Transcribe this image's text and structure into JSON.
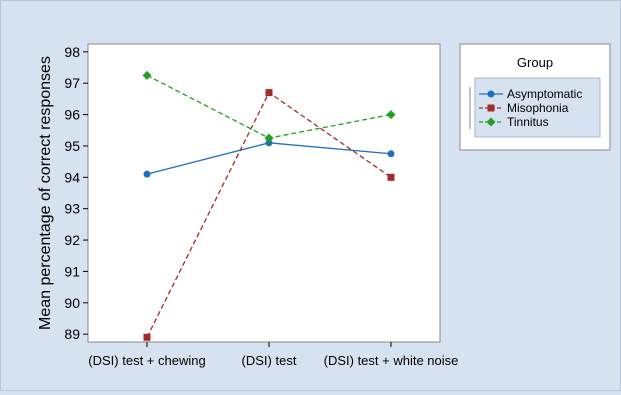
{
  "chart_data": {
    "type": "line",
    "categories": [
      "(DSI) test + chewing",
      "(DSI) test",
      "(DSI) test + white noise"
    ],
    "ylabel": "Mean percentage of correct responses",
    "xlabel": "",
    "ylim": [
      88.75,
      98.25
    ],
    "yticks": [
      89,
      90,
      91,
      92,
      93,
      94,
      95,
      96,
      97,
      98
    ],
    "grid": false,
    "legend": {
      "title": "Group",
      "placement": "right"
    },
    "series": [
      {
        "name": "Asymptomatic",
        "values": [
          94.1,
          95.1,
          94.75
        ],
        "color": "#1f6fc0",
        "marker": "circle",
        "dash": "solid"
      },
      {
        "name": "Misophonia",
        "values": [
          88.9,
          96.7,
          94.0
        ],
        "color": "#a52a2a",
        "marker": "square",
        "dash": "dashed"
      },
      {
        "name": "Tinnitus",
        "values": [
          97.25,
          95.25,
          96.0
        ],
        "color": "#22a022",
        "marker": "diamond",
        "dash": "dashed"
      }
    ]
  }
}
